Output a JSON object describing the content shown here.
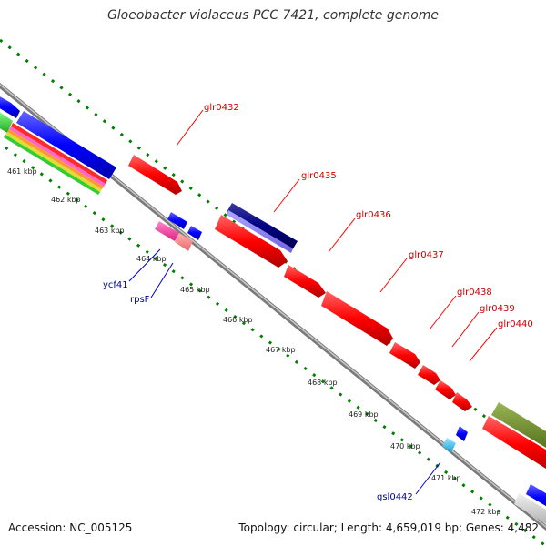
{
  "title": "Gloeobacter violaceus PCC 7421, complete genome",
  "footer": {
    "accession": "Accession: NC_005125",
    "summary": "Topology: circular; Length: 4,659,019 bp; Genes: 4,482"
  },
  "colors": {
    "forward_gene": "#ff0000",
    "reverse_gene": "#0000ff",
    "dark_gene": "#000080",
    "pink_gene": "#ff3399",
    "salmon_gene": "#ff8080",
    "cyan_gene": "#33ccff",
    "olive_gene": "#6b8e23",
    "gray_gene": "#c8c8c8",
    "backbone": "#808080",
    "scale": "#008000",
    "forward_label": "#cc0000",
    "reverse_label": "#000099"
  },
  "scale_ticks": [
    "461 kbp",
    "462 kbp",
    "463 kbp",
    "464 kbp",
    "465 kbp",
    "466 kbp",
    "467 kbp",
    "468 kbp",
    "469 kbp",
    "470 kbp",
    "471 kbp",
    "472 kbp"
  ],
  "forward_gene_labels": [
    "glr0432",
    "glr0435",
    "glr0436",
    "glr0437",
    "glr0438",
    "glr0439",
    "glr0440"
  ],
  "reverse_gene_labels": [
    "ycf41",
    "rpsF",
    "gsl0442"
  ]
}
